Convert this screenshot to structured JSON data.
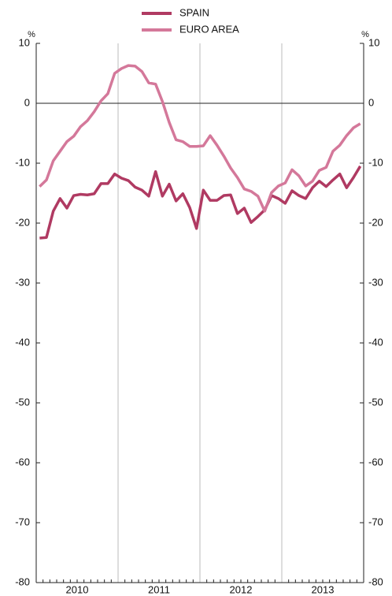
{
  "chart_data": {
    "type": "line",
    "unit": "%",
    "categories": [
      null,
      null,
      null,
      null,
      null,
      "2010",
      null,
      null,
      null,
      null,
      null,
      null,
      null,
      null,
      null,
      null,
      null,
      "2011",
      null,
      null,
      null,
      null,
      null,
      null,
      null,
      null,
      null,
      null,
      null,
      "2012",
      null,
      null,
      null,
      null,
      null,
      null,
      null,
      null,
      null,
      null,
      null,
      "2013",
      null,
      null,
      null,
      null,
      null,
      null
    ],
    "series": [
      {
        "name": "SPAIN",
        "color": "#b03a62",
        "values": [
          -22.5,
          -22.4,
          -18,
          -15.9,
          -17.5,
          -15.4,
          -15.2,
          -15.3,
          -15.1,
          -13.4,
          -13.4,
          -11.8,
          -12.5,
          -12.9,
          -14,
          -14.5,
          -15.5,
          -11.4,
          -15.5,
          -13.5,
          -16.3,
          -15.1,
          -17.4,
          -20.9,
          -14.5,
          -16.2,
          -16.2,
          -15.4,
          -15.3,
          -18.4,
          -17.5,
          -19.9,
          -18.9,
          -17.8,
          -15.4,
          -15.9,
          -16.7,
          -14.6,
          -15.4,
          -15.9,
          -14.1,
          -13,
          -13.9,
          -12.8,
          -11.8,
          -14.1,
          -12.4,
          -10.5
        ]
      },
      {
        "name": "EURO AREA",
        "color": "#d4789a",
        "values": [
          -13.9,
          -12.8,
          -9.6,
          -8,
          -6.4,
          -5.5,
          -3.9,
          -2.9,
          -1.4,
          0.4,
          1.6,
          5,
          5.8,
          6.3,
          6.2,
          5.3,
          3.4,
          3.2,
          0.3,
          -3.2,
          -6.1,
          -6.4,
          -7.2,
          -7.2,
          -7.1,
          -5.4,
          -7,
          -8.8,
          -10.8,
          -12.4,
          -14.3,
          -14.7,
          -15.5,
          -18,
          -14.9,
          -13.8,
          -13.3,
          -11.1,
          -12.1,
          -13.8,
          -13,
          -11.2,
          -10.7,
          -8,
          -7,
          -5.4,
          -4.1,
          -3.4
        ]
      }
    ],
    "ylim": [
      -80,
      10
    ],
    "yticks": [
      10,
      0,
      -10,
      -20,
      -30,
      -40,
      -50,
      -60,
      -70,
      -80
    ],
    "zero_line": true
  }
}
